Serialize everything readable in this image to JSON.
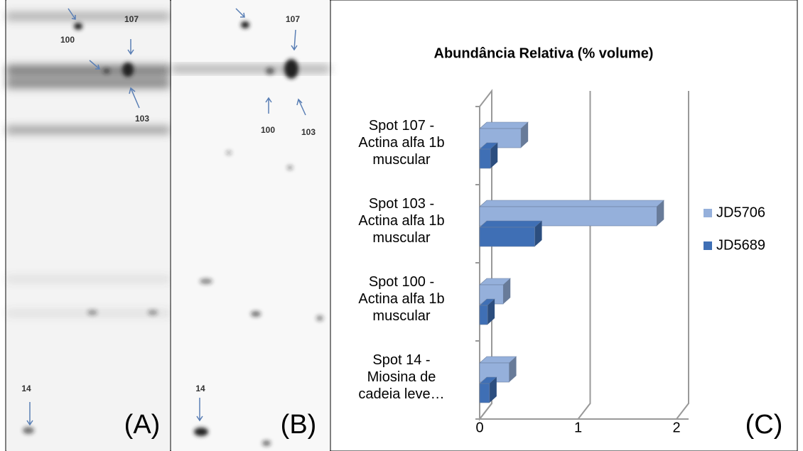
{
  "panels": [
    {
      "label": "(A)",
      "annotations": [
        "107",
        "100",
        "103",
        "14"
      ]
    },
    {
      "label": "(B)",
      "annotations": [
        "107",
        "100",
        "103",
        "14"
      ]
    },
    {
      "label": "(C)"
    }
  ],
  "chart_data": {
    "type": "bar3d_horizontal",
    "title": "Abundância Relativa (% volume)",
    "categories": [
      "Spot 107 - Actina alfa 1b muscular",
      "Spot 103 - Actina alfa 1b muscular",
      "Spot 100 - Actina alfa 1b muscular",
      "Spot 14 - Miosina de cadeia leve…"
    ],
    "series": [
      {
        "name": "JD5706",
        "color": "#95b0db",
        "values": [
          0.42,
          1.8,
          0.24,
          0.3
        ]
      },
      {
        "name": "JD5689",
        "color": "#3f6fb5",
        "values": [
          0.11,
          0.56,
          0.08,
          0.1
        ]
      }
    ],
    "xlim": [
      0,
      2
    ],
    "xticks": [
      0,
      1,
      2
    ],
    "grid": true,
    "legend": "right"
  }
}
